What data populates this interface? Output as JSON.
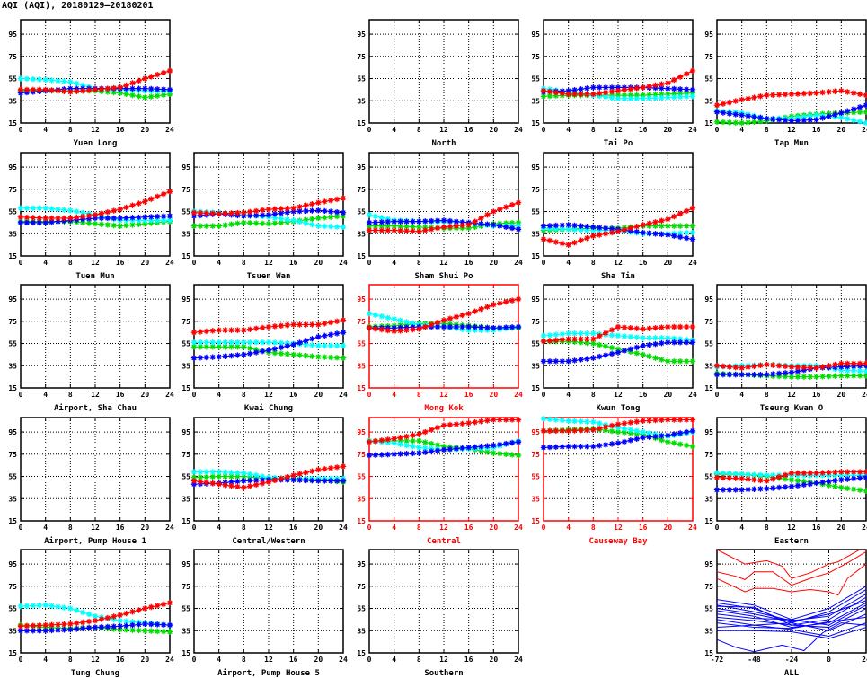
{
  "chart_data": {
    "type": "line",
    "title": "AQI (AQI), 20180129–20180201",
    "ylim": [
      15,
      108
    ],
    "xlim": [
      0,
      24
    ],
    "yticks": [
      15,
      35,
      55,
      75,
      95
    ],
    "xticks": [
      0,
      4,
      8,
      12,
      16,
      20,
      24
    ],
    "grid": true,
    "series_colors": {
      "red": "#ff0000",
      "green": "#00dd00",
      "cyan": "#00ffff",
      "blue": "#0000ff"
    },
    "highlight_color": "#ff0000",
    "x": [
      0,
      4,
      8,
      12,
      16,
      20,
      24
    ],
    "panels": [
      {
        "name": "Yuen Long",
        "series": {
          "red": [
            45,
            45,
            43,
            45,
            47,
            55,
            62
          ],
          "green": [
            44,
            44,
            44,
            44,
            42,
            38,
            41
          ],
          "cyan": [
            55,
            54,
            52,
            46,
            45,
            44,
            44
          ],
          "blue": [
            42,
            44,
            46,
            46,
            46,
            46,
            45
          ]
        }
      },
      {
        "name": "North",
        "series": null
      },
      {
        "name": "Tai Po",
        "series": {
          "red": [
            44,
            41,
            41,
            44,
            47,
            51,
            62
          ],
          "green": [
            39,
            40,
            40,
            40,
            40,
            41,
            42
          ],
          "cyan": [
            46,
            43,
            40,
            37,
            37,
            38,
            39
          ],
          "blue": [
            43,
            44,
            47,
            47,
            47,
            46,
            45
          ]
        }
      },
      {
        "name": "Tap Mun",
        "series": {
          "red": [
            31,
            36,
            40,
            41,
            42,
            44,
            40
          ],
          "green": [
            16,
            15,
            17,
            21,
            23,
            24,
            25
          ],
          "cyan": [
            26,
            24,
            19,
            19,
            22,
            20,
            15
          ],
          "blue": [
            25,
            22,
            19,
            17,
            18,
            24,
            31
          ]
        }
      },
      {
        "name": "Tuen Mun",
        "series": {
          "red": [
            50,
            49,
            49,
            52,
            57,
            64,
            73
          ],
          "green": [
            46,
            46,
            46,
            44,
            42,
            44,
            46
          ],
          "cyan": [
            58,
            58,
            56,
            52,
            47,
            47,
            47
          ],
          "blue": [
            45,
            45,
            47,
            49,
            49,
            50,
            51
          ]
        }
      },
      {
        "name": "Tsuen Wan",
        "series": {
          "red": [
            54,
            53,
            54,
            57,
            58,
            63,
            67
          ],
          "green": [
            42,
            42,
            45,
            44,
            46,
            49,
            51
          ],
          "cyan": [
            55,
            54,
            52,
            50,
            47,
            42,
            41
          ],
          "blue": [
            51,
            53,
            51,
            52,
            55,
            56,
            54
          ]
        }
      },
      {
        "name": "Sham Shui Po",
        "series": {
          "red": [
            38,
            38,
            37,
            41,
            43,
            55,
            63
          ],
          "green": [
            42,
            42,
            41,
            40,
            40,
            44,
            45
          ],
          "cyan": [
            52,
            47,
            46,
            46,
            45,
            42,
            42
          ],
          "blue": [
            45,
            46,
            46,
            47,
            45,
            43,
            39
          ]
        }
      },
      {
        "name": "Sha Tin",
        "series": {
          "red": [
            30,
            25,
            33,
            37,
            43,
            48,
            58
          ],
          "green": [
            38,
            39,
            40,
            40,
            42,
            42,
            42
          ],
          "cyan": [
            40,
            39,
            38,
            38,
            35,
            35,
            36
          ],
          "blue": [
            42,
            43,
            41,
            39,
            36,
            34,
            30
          ]
        }
      },
      {
        "name": "Airport, Sha Chau",
        "series": null
      },
      {
        "name": "Kwai Chung",
        "series": {
          "red": [
            65,
            67,
            67,
            70,
            72,
            72,
            76
          ],
          "green": [
            52,
            52,
            52,
            47,
            45,
            43,
            42
          ],
          "cyan": [
            56,
            56,
            56,
            56,
            55,
            53,
            53
          ],
          "blue": [
            42,
            43,
            45,
            49,
            54,
            61,
            65
          ]
        }
      },
      {
        "name": "Mong Kok",
        "highlight": true,
        "series": {
          "red": [
            69,
            66,
            68,
            76,
            82,
            90,
            95
          ],
          "green": [
            70,
            71,
            73,
            73,
            71,
            69,
            69
          ],
          "cyan": [
            82,
            77,
            72,
            70,
            67,
            67,
            70
          ],
          "blue": [
            69,
            69,
            70,
            70,
            70,
            69,
            70
          ]
        }
      },
      {
        "name": "Kwun Tong",
        "series": {
          "red": [
            57,
            59,
            59,
            70,
            68,
            70,
            70
          ],
          "green": [
            57,
            57,
            55,
            50,
            45,
            39,
            39
          ],
          "cyan": [
            62,
            64,
            64,
            62,
            60,
            60,
            58
          ],
          "blue": [
            39,
            39,
            42,
            47,
            53,
            56,
            56
          ]
        }
      },
      {
        "name": "Tseung Kwan O",
        "series": {
          "red": [
            35,
            33,
            36,
            34,
            33,
            37,
            37
          ],
          "green": [
            28,
            27,
            26,
            25,
            25,
            26,
            26
          ],
          "cyan": [
            34,
            35,
            36,
            35,
            35,
            31,
            30
          ],
          "blue": [
            27,
            27,
            27,
            29,
            33,
            34,
            35
          ]
        }
      },
      {
        "name": "Airport, Pump House 1",
        "series": null
      },
      {
        "name": "Central/Western",
        "series": {
          "red": [
            51,
            48,
            45,
            50,
            56,
            61,
            64
          ],
          "green": [
            54,
            55,
            55,
            53,
            52,
            52,
            50
          ],
          "cyan": [
            59,
            59,
            58,
            54,
            53,
            53,
            53
          ],
          "blue": [
            48,
            49,
            51,
            52,
            52,
            51,
            51
          ]
        }
      },
      {
        "name": "Central",
        "highlight": true,
        "series": {
          "red": [
            86,
            89,
            93,
            101,
            103,
            106,
            106
          ],
          "green": [
            87,
            87,
            87,
            82,
            80,
            76,
            74
          ],
          "cyan": [
            87,
            85,
            81,
            79,
            80,
            81,
            87
          ],
          "blue": [
            74,
            75,
            76,
            79,
            81,
            83,
            86
          ]
        }
      },
      {
        "name": "Causeway Bay",
        "highlight": true,
        "series": {
          "red": [
            96,
            96,
            97,
            102,
            105,
            106,
            106
          ],
          "green": [
            96,
            97,
            98,
            95,
            93,
            86,
            82
          ],
          "cyan": [
            107,
            105,
            104,
            99,
            95,
            91,
            95
          ],
          "blue": [
            81,
            82,
            82,
            85,
            90,
            92,
            96
          ]
        }
      },
      {
        "name": "Eastern",
        "series": {
          "red": [
            54,
            53,
            51,
            58,
            58,
            59,
            59
          ],
          "green": [
            57,
            57,
            55,
            52,
            49,
            45,
            42
          ],
          "cyan": [
            58,
            57,
            56,
            56,
            56,
            56,
            56
          ],
          "blue": [
            43,
            43,
            44,
            46,
            49,
            52,
            54
          ]
        }
      },
      {
        "name": "Tung Chung",
        "series": {
          "red": [
            39,
            40,
            41,
            44,
            49,
            55,
            60
          ],
          "green": [
            40,
            38,
            37,
            38,
            36,
            35,
            34
          ],
          "cyan": [
            57,
            58,
            55,
            48,
            44,
            42,
            40
          ],
          "blue": [
            35,
            35,
            36,
            38,
            39,
            41,
            40
          ]
        }
      },
      {
        "name": "Airport, Pump House 5",
        "series": null
      },
      {
        "name": "Southern",
        "series": null
      }
    ],
    "all_panel": {
      "name": "ALL",
      "xlim": [
        -72,
        24
      ],
      "xticks": [
        -72,
        -48,
        -24,
        0,
        24
      ],
      "red_lines": [
        {
          "x": [
            -72,
            -54,
            -40,
            -30,
            -24,
            -12,
            0,
            6,
            20,
            24
          ],
          "y": [
            108,
            95,
            98,
            93,
            82,
            87,
            95,
            97,
            108,
            108
          ]
        },
        {
          "x": [
            -72,
            -60,
            -54,
            -48,
            -36,
            -24,
            -12,
            0,
            12,
            24
          ],
          "y": [
            88,
            84,
            81,
            88,
            88,
            76,
            82,
            87,
            96,
            106
          ]
        },
        {
          "x": [
            -72,
            -54,
            -48,
            -36,
            -24,
            -12,
            0,
            6,
            12,
            24
          ],
          "y": [
            82,
            70,
            73,
            73,
            70,
            72,
            70,
            67,
            82,
            95
          ]
        }
      ],
      "blue_lines": [
        {
          "x": [
            -72,
            -48,
            -24,
            0,
            24
          ],
          "y": [
            63,
            58,
            45,
            55,
            75
          ]
        },
        {
          "x": [
            -72,
            -48,
            -24,
            0,
            24
          ],
          "y": [
            60,
            55,
            42,
            52,
            72
          ]
        },
        {
          "x": [
            -72,
            -48,
            -24,
            0,
            24
          ],
          "y": [
            58,
            52,
            44,
            48,
            68
          ]
        },
        {
          "x": [
            -72,
            -48,
            -24,
            0,
            24
          ],
          "y": [
            57,
            56,
            40,
            45,
            65
          ]
        },
        {
          "x": [
            -72,
            -48,
            -24,
            0,
            24
          ],
          "y": [
            55,
            50,
            43,
            50,
            62
          ]
        },
        {
          "x": [
            -72,
            -48,
            -24,
            0,
            24
          ],
          "y": [
            53,
            48,
            38,
            42,
            60
          ]
        },
        {
          "x": [
            -72,
            -48,
            -24,
            0,
            24
          ],
          "y": [
            50,
            46,
            45,
            40,
            58
          ]
        },
        {
          "x": [
            -72,
            -48,
            -24,
            0,
            24
          ],
          "y": [
            47,
            44,
            40,
            38,
            55
          ]
        },
        {
          "x": [
            -72,
            -48,
            -24,
            0,
            24
          ],
          "y": [
            45,
            40,
            42,
            35,
            50
          ]
        },
        {
          "x": [
            -72,
            -48,
            -24,
            0,
            24
          ],
          "y": [
            42,
            38,
            37,
            43,
            47
          ]
        },
        {
          "x": [
            -72,
            -48,
            -24,
            0,
            24
          ],
          "y": [
            38,
            40,
            36,
            30,
            42
          ]
        },
        {
          "x": [
            -72,
            -48,
            -24,
            0,
            24
          ],
          "y": [
            35,
            35,
            34,
            28,
            38
          ]
        },
        {
          "x": [
            -72,
            -60,
            -48,
            -30,
            -16,
            -4,
            8,
            24
          ],
          "y": [
            27,
            20,
            16,
            22,
            17,
            33,
            42,
            40
          ]
        }
      ]
    }
  }
}
